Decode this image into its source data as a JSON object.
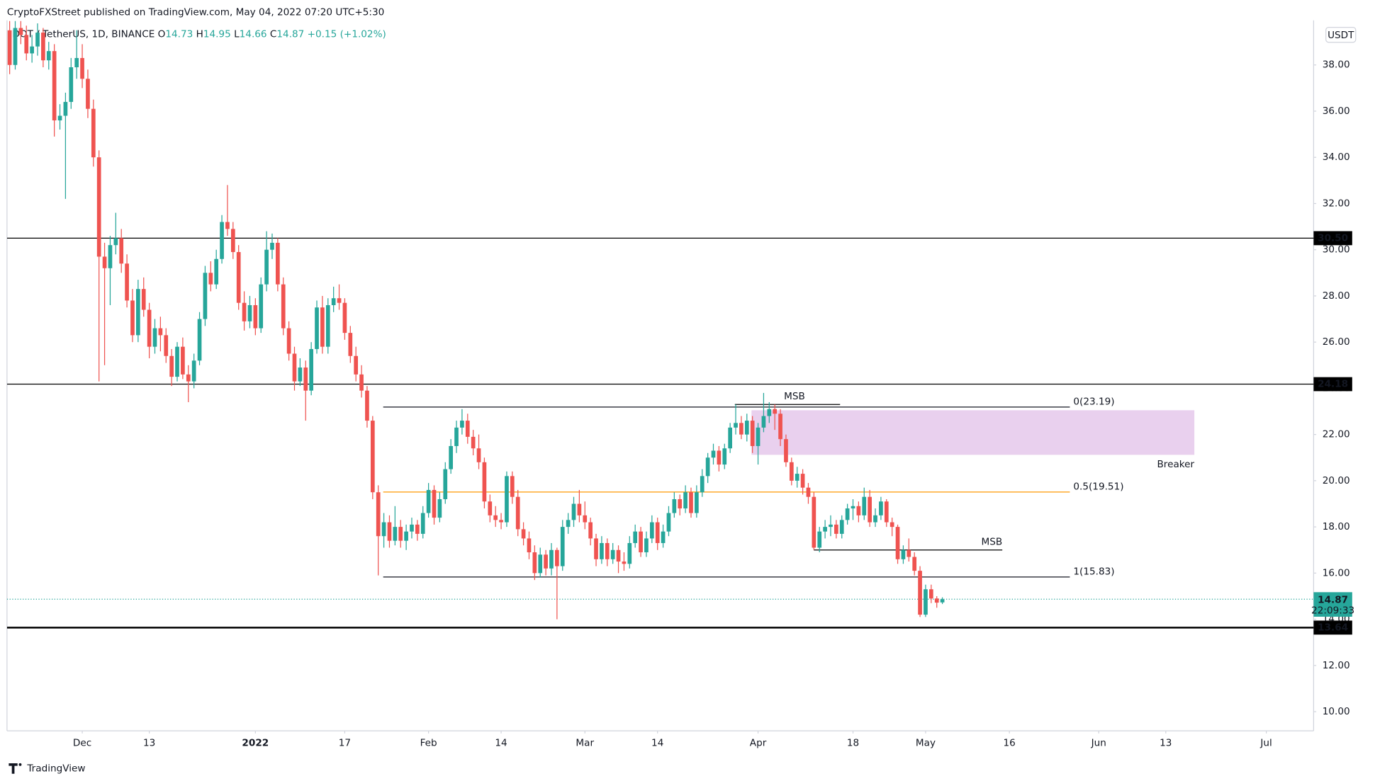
{
  "header": {
    "published": "CryptoFXStreet published on TradingView.com, May 04, 2022 07:20 UTC+5:30"
  },
  "footer": {
    "brand": "TradingView"
  },
  "chart_data": {
    "type": "candlestick",
    "symbol": "DOT / TetherUS, 1D, BINANCE ",
    "ohlc_keys": [
      " O",
      " H",
      " L",
      " C"
    ],
    "change": " +0.15 (+1.02%)",
    "currency": "USDT",
    "up_color": "#26a69a",
    "down_color": "#ef5350",
    "grid": false,
    "xlim": [
      "2021-11-18",
      "2022-07-09"
    ],
    "ylim": [
      9.17,
      39.93
    ],
    "xticks": [
      {
        "value": "2021-12-01",
        "label": "Dec"
      },
      {
        "value": "2021-12-13",
        "label": "13"
      },
      {
        "value": "2022-01-01",
        "label": "2022"
      },
      {
        "value": "2022-01-17",
        "label": "17"
      },
      {
        "value": "2022-02-01",
        "label": "Feb"
      },
      {
        "value": "2022-02-14",
        "label": "14"
      },
      {
        "value": "2022-03-01",
        "label": "Mar"
      },
      {
        "value": "2022-03-14",
        "label": "14"
      },
      {
        "value": "2022-04-01",
        "label": "Apr"
      },
      {
        "value": "2022-04-18",
        "label": "18"
      },
      {
        "value": "2022-05-01",
        "label": "May"
      },
      {
        "value": "2022-05-16",
        "label": "16"
      },
      {
        "value": "2022-06-01",
        "label": "Jun"
      },
      {
        "value": "2022-06-13",
        "label": "13"
      },
      {
        "value": "2022-07-01",
        "label": "Jul"
      }
    ],
    "yticks": [
      {
        "value": 10,
        "label": "10.00"
      },
      {
        "value": 12,
        "label": "12.00"
      },
      {
        "value": 14,
        "label": "14.00"
      },
      {
        "value": 16,
        "label": "16.00"
      },
      {
        "value": 18,
        "label": "18.00"
      },
      {
        "value": 20,
        "label": "20.00"
      },
      {
        "value": 22,
        "label": "22.00"
      },
      {
        "value": 24,
        "label": "24.00"
      },
      {
        "value": 26,
        "label": "26.00"
      },
      {
        "value": 28,
        "label": "28.00"
      },
      {
        "value": 30,
        "label": "30.00"
      },
      {
        "value": 32,
        "label": "32.00"
      },
      {
        "value": 34,
        "label": "34.00"
      },
      {
        "value": 36,
        "label": "36.00"
      },
      {
        "value": 38,
        "label": "38.00"
      }
    ],
    "levels": [
      {
        "value": 30.5,
        "label": "30.50",
        "width": 1
      },
      {
        "value": 24.18,
        "label": "24.18",
        "width": 1
      },
      {
        "value": 13.64,
        "label": "13.64",
        "width": 2
      }
    ],
    "last_price": 14.87,
    "countdown": "22:09:33",
    "last_color": "#26a69a",
    "fib": [
      {
        "value": 23.19,
        "label": "0(23.19)",
        "color": "#131722"
      },
      {
        "value": 19.51,
        "label": "0.5(19.51)",
        "color": "#ff9800"
      },
      {
        "value": 15.83,
        "label": "1(15.83)",
        "color": "#131722"
      }
    ],
    "msb": [
      {
        "value": 23.3,
        "label": "MSB"
      },
      {
        "value": 17.0,
        "label": "MSB"
      }
    ],
    "breaker": {
      "top": 23.05,
      "bottom": 21.12,
      "label": "Breaker",
      "color": "#9c27b0"
    },
    "x": [
      "2021-11-18",
      "2021-11-19",
      "2021-11-20",
      "2021-11-21",
      "2021-11-22",
      "2021-11-23",
      "2021-11-24",
      "2021-11-25",
      "2021-11-26",
      "2021-11-27",
      "2021-11-28",
      "2021-11-29",
      "2021-11-30",
      "2021-12-01",
      "2021-12-02",
      "2021-12-03",
      "2021-12-04",
      "2021-12-05",
      "2021-12-06",
      "2021-12-07",
      "2021-12-08",
      "2021-12-09",
      "2021-12-10",
      "2021-12-11",
      "2021-12-12",
      "2021-12-13",
      "2021-12-14",
      "2021-12-15",
      "2021-12-16",
      "2021-12-17",
      "2021-12-18",
      "2021-12-19",
      "2021-12-20",
      "2021-12-21",
      "2021-12-22",
      "2021-12-23",
      "2021-12-24",
      "2021-12-25",
      "2021-12-26",
      "2021-12-27",
      "2021-12-28",
      "2021-12-29",
      "2021-12-30",
      "2021-12-31",
      "2022-01-01",
      "2022-01-02",
      "2022-01-03",
      "2022-01-04",
      "2022-01-05",
      "2022-01-06",
      "2022-01-07",
      "2022-01-08",
      "2022-01-09",
      "2022-01-10",
      "2022-01-11",
      "2022-01-12",
      "2022-01-13",
      "2022-01-14",
      "2022-01-15",
      "2022-01-16",
      "2022-01-17",
      "2022-01-18",
      "2022-01-19",
      "2022-01-20",
      "2022-01-21",
      "2022-01-22",
      "2022-01-23",
      "2022-01-24",
      "2022-01-25",
      "2022-01-26",
      "2022-01-27",
      "2022-01-28",
      "2022-01-29",
      "2022-01-30",
      "2022-01-31",
      "2022-02-01",
      "2022-02-02",
      "2022-02-03",
      "2022-02-04",
      "2022-02-05",
      "2022-02-06",
      "2022-02-07",
      "2022-02-08",
      "2022-02-09",
      "2022-02-10",
      "2022-02-11",
      "2022-02-12",
      "2022-02-13",
      "2022-02-14",
      "2022-02-15",
      "2022-02-16",
      "2022-02-17",
      "2022-02-18",
      "2022-02-19",
      "2022-02-20",
      "2022-02-21",
      "2022-02-22",
      "2022-02-23",
      "2022-02-24",
      "2022-02-25",
      "2022-02-26",
      "2022-02-27",
      "2022-02-28",
      "2022-03-01",
      "2022-03-02",
      "2022-03-03",
      "2022-03-04",
      "2022-03-05",
      "2022-03-06",
      "2022-03-07",
      "2022-03-08",
      "2022-03-09",
      "2022-03-10",
      "2022-03-11",
      "2022-03-12",
      "2022-03-13",
      "2022-03-14",
      "2022-03-15",
      "2022-03-16",
      "2022-03-17",
      "2022-03-18",
      "2022-03-19",
      "2022-03-20",
      "2022-03-21",
      "2022-03-22",
      "2022-03-23",
      "2022-03-24",
      "2022-03-25",
      "2022-03-26",
      "2022-03-27",
      "2022-03-28",
      "2022-03-29",
      "2022-03-30",
      "2022-03-31",
      "2022-04-01",
      "2022-04-02",
      "2022-04-03",
      "2022-04-04",
      "2022-04-05",
      "2022-04-06",
      "2022-04-07",
      "2022-04-08",
      "2022-04-09",
      "2022-04-10",
      "2022-04-11",
      "2022-04-12",
      "2022-04-13",
      "2022-04-14",
      "2022-04-15",
      "2022-04-16",
      "2022-04-17",
      "2022-04-18",
      "2022-04-19",
      "2022-04-20",
      "2022-04-21",
      "2022-04-22",
      "2022-04-23",
      "2022-04-24",
      "2022-04-25",
      "2022-04-26",
      "2022-04-27",
      "2022-04-28",
      "2022-04-29",
      "2022-04-30",
      "2022-05-01",
      "2022-05-02",
      "2022-05-03",
      "2022-05-04"
    ],
    "candles": [
      [
        39.5,
        39.9,
        37.6,
        38.0
      ],
      [
        38.0,
        39.9,
        37.8,
        39.6
      ],
      [
        39.6,
        39.9,
        38.9,
        39.3
      ],
      [
        39.3,
        39.7,
        38.2,
        38.5
      ],
      [
        38.5,
        39.3,
        38.1,
        38.8
      ],
      [
        38.8,
        39.8,
        38.4,
        39.4
      ],
      [
        39.4,
        39.6,
        37.9,
        38.2
      ],
      [
        38.2,
        39.0,
        37.8,
        38.6
      ],
      [
        38.6,
        38.9,
        34.9,
        35.6
      ],
      [
        35.6,
        36.3,
        35.2,
        35.8
      ],
      [
        35.8,
        36.8,
        32.2,
        36.4
      ],
      [
        36.4,
        38.3,
        36.1,
        37.9
      ],
      [
        37.9,
        39.5,
        37.4,
        38.3
      ],
      [
        38.3,
        38.9,
        37.0,
        37.4
      ],
      [
        37.4,
        37.8,
        35.7,
        36.1
      ],
      [
        36.1,
        36.5,
        33.6,
        34.0
      ],
      [
        34.0,
        34.3,
        24.3,
        29.7
      ],
      [
        29.7,
        30.3,
        25.0,
        29.2
      ],
      [
        29.2,
        30.6,
        27.6,
        30.2
      ],
      [
        30.2,
        31.6,
        29.8,
        30.5
      ],
      [
        30.5,
        30.9,
        29.0,
        29.4
      ],
      [
        29.4,
        29.8,
        27.5,
        27.8
      ],
      [
        27.8,
        28.3,
        26.0,
        26.3
      ],
      [
        26.3,
        28.7,
        26.0,
        28.3
      ],
      [
        28.3,
        28.8,
        27.1,
        27.4
      ],
      [
        27.4,
        27.7,
        25.3,
        25.8
      ],
      [
        25.8,
        27.0,
        25.5,
        26.6
      ],
      [
        26.6,
        27.1,
        25.6,
        26.3
      ],
      [
        26.3,
        26.6,
        25.1,
        25.4
      ],
      [
        25.4,
        25.7,
        24.1,
        24.5
      ],
      [
        24.5,
        26.0,
        24.3,
        25.8
      ],
      [
        25.8,
        26.2,
        24.4,
        24.6
      ],
      [
        24.6,
        25.0,
        23.4,
        24.3
      ],
      [
        24.3,
        25.5,
        24.0,
        25.2
      ],
      [
        25.2,
        27.3,
        25.0,
        27.0
      ],
      [
        27.0,
        29.3,
        26.7,
        29.0
      ],
      [
        29.0,
        29.5,
        28.2,
        28.5
      ],
      [
        28.5,
        30.0,
        28.3,
        29.6
      ],
      [
        29.6,
        31.5,
        29.4,
        31.2
      ],
      [
        31.2,
        32.8,
        30.6,
        30.9
      ],
      [
        30.9,
        31.2,
        29.6,
        29.9
      ],
      [
        29.9,
        30.2,
        27.4,
        27.7
      ],
      [
        27.7,
        28.2,
        26.5,
        26.9
      ],
      [
        26.9,
        28.0,
        26.6,
        27.6
      ],
      [
        27.6,
        27.9,
        26.3,
        26.6
      ],
      [
        26.6,
        28.8,
        26.4,
        28.5
      ],
      [
        28.5,
        30.8,
        28.2,
        30.0
      ],
      [
        30.0,
        30.7,
        29.6,
        30.3
      ],
      [
        30.3,
        30.5,
        28.2,
        28.5
      ],
      [
        28.5,
        28.8,
        26.3,
        26.6
      ],
      [
        26.6,
        26.9,
        25.2,
        25.5
      ],
      [
        25.5,
        25.8,
        23.9,
        24.3
      ],
      [
        24.3,
        25.3,
        24.1,
        24.9
      ],
      [
        24.9,
        25.2,
        22.6,
        23.9
      ],
      [
        23.9,
        26.0,
        23.7,
        25.7
      ],
      [
        25.7,
        27.8,
        25.5,
        27.5
      ],
      [
        27.5,
        28.0,
        25.5,
        25.8
      ],
      [
        25.8,
        27.9,
        25.5,
        27.6
      ],
      [
        27.6,
        28.4,
        27.3,
        27.9
      ],
      [
        27.9,
        28.5,
        27.4,
        27.7
      ],
      [
        27.7,
        27.9,
        26.1,
        26.4
      ],
      [
        26.4,
        26.7,
        25.1,
        25.4
      ],
      [
        25.4,
        25.8,
        24.3,
        24.6
      ],
      [
        24.6,
        25.0,
        23.6,
        23.9
      ],
      [
        23.9,
        24.1,
        22.3,
        22.6
      ],
      [
        22.6,
        22.8,
        19.2,
        19.5
      ],
      [
        19.5,
        19.8,
        15.9,
        17.6
      ],
      [
        17.6,
        18.6,
        17.1,
        18.2
      ],
      [
        18.2,
        18.5,
        17.1,
        17.4
      ],
      [
        17.4,
        18.9,
        17.2,
        18.0
      ],
      [
        18.0,
        18.3,
        17.1,
        17.4
      ],
      [
        17.4,
        18.1,
        17.0,
        17.8
      ],
      [
        17.8,
        18.4,
        17.5,
        18.1
      ],
      [
        18.1,
        18.3,
        17.4,
        17.7
      ],
      [
        17.7,
        18.9,
        17.5,
        18.6
      ],
      [
        18.6,
        19.9,
        18.4,
        19.6
      ],
      [
        19.6,
        19.8,
        18.1,
        18.4
      ],
      [
        18.4,
        19.5,
        18.2,
        19.2
      ],
      [
        19.2,
        20.8,
        19.0,
        20.5
      ],
      [
        20.5,
        21.8,
        20.3,
        21.5
      ],
      [
        21.5,
        22.6,
        21.2,
        22.3
      ],
      [
        22.3,
        23.1,
        22.0,
        22.6
      ],
      [
        22.6,
        22.9,
        21.6,
        21.9
      ],
      [
        21.9,
        22.2,
        21.1,
        21.4
      ],
      [
        21.4,
        22.0,
        20.5,
        20.8
      ],
      [
        20.8,
        21.0,
        18.8,
        19.1
      ],
      [
        19.1,
        19.4,
        18.2,
        18.5
      ],
      [
        18.5,
        18.9,
        18.0,
        18.3
      ],
      [
        18.3,
        18.6,
        17.9,
        18.2
      ],
      [
        18.2,
        20.4,
        18.0,
        20.2
      ],
      [
        20.2,
        20.4,
        19.0,
        19.3
      ],
      [
        19.3,
        19.6,
        17.6,
        17.9
      ],
      [
        17.9,
        18.2,
        17.2,
        17.5
      ],
      [
        17.5,
        17.8,
        16.6,
        16.9
      ],
      [
        16.9,
        17.2,
        15.7,
        16.0
      ],
      [
        16.0,
        17.1,
        15.8,
        16.8
      ],
      [
        16.8,
        17.0,
        15.9,
        16.2
      ],
      [
        16.2,
        17.3,
        15.9,
        17.0
      ],
      [
        17.0,
        17.1,
        14.0,
        16.3
      ],
      [
        16.3,
        18.3,
        16.1,
        18.0
      ],
      [
        18.0,
        18.6,
        17.7,
        18.3
      ],
      [
        18.3,
        19.3,
        18.0,
        19.0
      ],
      [
        19.0,
        19.6,
        18.2,
        18.5
      ],
      [
        18.5,
        19.1,
        17.9,
        18.2
      ],
      [
        18.2,
        18.4,
        17.2,
        17.5
      ],
      [
        17.5,
        17.7,
        16.3,
        16.6
      ],
      [
        16.6,
        17.6,
        16.4,
        17.3
      ],
      [
        17.3,
        17.5,
        16.3,
        16.6
      ],
      [
        16.6,
        17.3,
        16.4,
        17.0
      ],
      [
        17.0,
        17.2,
        16.0,
        16.5
      ],
      [
        16.5,
        16.9,
        16.1,
        16.4
      ],
      [
        16.4,
        17.6,
        16.2,
        17.3
      ],
      [
        17.3,
        18.1,
        17.1,
        17.8
      ],
      [
        17.8,
        18.0,
        16.7,
        16.9
      ],
      [
        16.9,
        17.8,
        16.7,
        17.5
      ],
      [
        17.5,
        18.5,
        17.3,
        18.2
      ],
      [
        18.2,
        18.4,
        17.0,
        17.3
      ],
      [
        17.3,
        18.1,
        17.1,
        17.8
      ],
      [
        17.8,
        18.9,
        17.6,
        18.6
      ],
      [
        18.6,
        19.5,
        18.4,
        19.2
      ],
      [
        19.2,
        19.4,
        18.5,
        18.8
      ],
      [
        18.8,
        19.8,
        18.6,
        19.5
      ],
      [
        19.5,
        19.7,
        18.4,
        18.6
      ],
      [
        18.6,
        19.8,
        18.4,
        19.5
      ],
      [
        19.5,
        20.5,
        19.3,
        20.2
      ],
      [
        20.2,
        21.2,
        19.9,
        21.0
      ],
      [
        21.0,
        21.6,
        20.7,
        21.3
      ],
      [
        21.3,
        21.5,
        20.4,
        20.7
      ],
      [
        20.7,
        21.6,
        20.5,
        21.4
      ],
      [
        21.4,
        22.5,
        21.2,
        22.3
      ],
      [
        22.3,
        23.3,
        22.0,
        22.5
      ],
      [
        22.5,
        22.8,
        21.8,
        22.0
      ],
      [
        22.0,
        22.9,
        21.7,
        22.6
      ],
      [
        22.6,
        22.8,
        21.2,
        21.5
      ],
      [
        21.5,
        22.5,
        20.7,
        22.3
      ],
      [
        22.3,
        23.8,
        22.1,
        22.8
      ],
      [
        22.8,
        23.4,
        22.5,
        23.1
      ],
      [
        23.1,
        23.3,
        22.2,
        22.9
      ],
      [
        22.9,
        23.1,
        21.5,
        21.8
      ],
      [
        21.8,
        22.0,
        20.6,
        20.8
      ],
      [
        20.8,
        21.0,
        19.8,
        20.0
      ],
      [
        20.0,
        20.6,
        19.7,
        20.3
      ],
      [
        20.3,
        20.5,
        19.4,
        19.7
      ],
      [
        19.7,
        19.9,
        19.0,
        19.3
      ],
      [
        19.3,
        19.5,
        17.0,
        17.1
      ],
      [
        17.1,
        18.0,
        16.9,
        17.8
      ],
      [
        17.8,
        18.3,
        17.5,
        18.0
      ],
      [
        18.0,
        18.5,
        17.6,
        18.1
      ],
      [
        18.1,
        18.3,
        17.5,
        17.7
      ],
      [
        17.7,
        18.5,
        17.5,
        18.3
      ],
      [
        18.3,
        19.0,
        18.1,
        18.8
      ],
      [
        18.8,
        19.2,
        18.3,
        18.9
      ],
      [
        18.9,
        19.1,
        18.2,
        18.5
      ],
      [
        18.5,
        19.7,
        18.3,
        19.3
      ],
      [
        19.3,
        19.6,
        18.0,
        18.2
      ],
      [
        18.2,
        18.8,
        18.0,
        18.5
      ],
      [
        18.5,
        19.3,
        18.3,
        19.1
      ],
      [
        19.1,
        19.2,
        18.0,
        18.2
      ],
      [
        18.2,
        18.4,
        17.6,
        18.0
      ],
      [
        18.0,
        18.1,
        16.4,
        16.6
      ],
      [
        16.6,
        17.2,
        16.4,
        17.0
      ],
      [
        17.0,
        17.5,
        16.5,
        16.7
      ],
      [
        16.7,
        16.9,
        15.9,
        16.1
      ],
      [
        16.1,
        16.3,
        14.1,
        14.2
      ],
      [
        14.2,
        15.5,
        14.1,
        15.3
      ],
      [
        15.3,
        15.5,
        14.7,
        14.9
      ],
      [
        14.9,
        15.0,
        14.5,
        14.72
      ],
      [
        14.73,
        14.95,
        14.66,
        14.87
      ]
    ]
  }
}
